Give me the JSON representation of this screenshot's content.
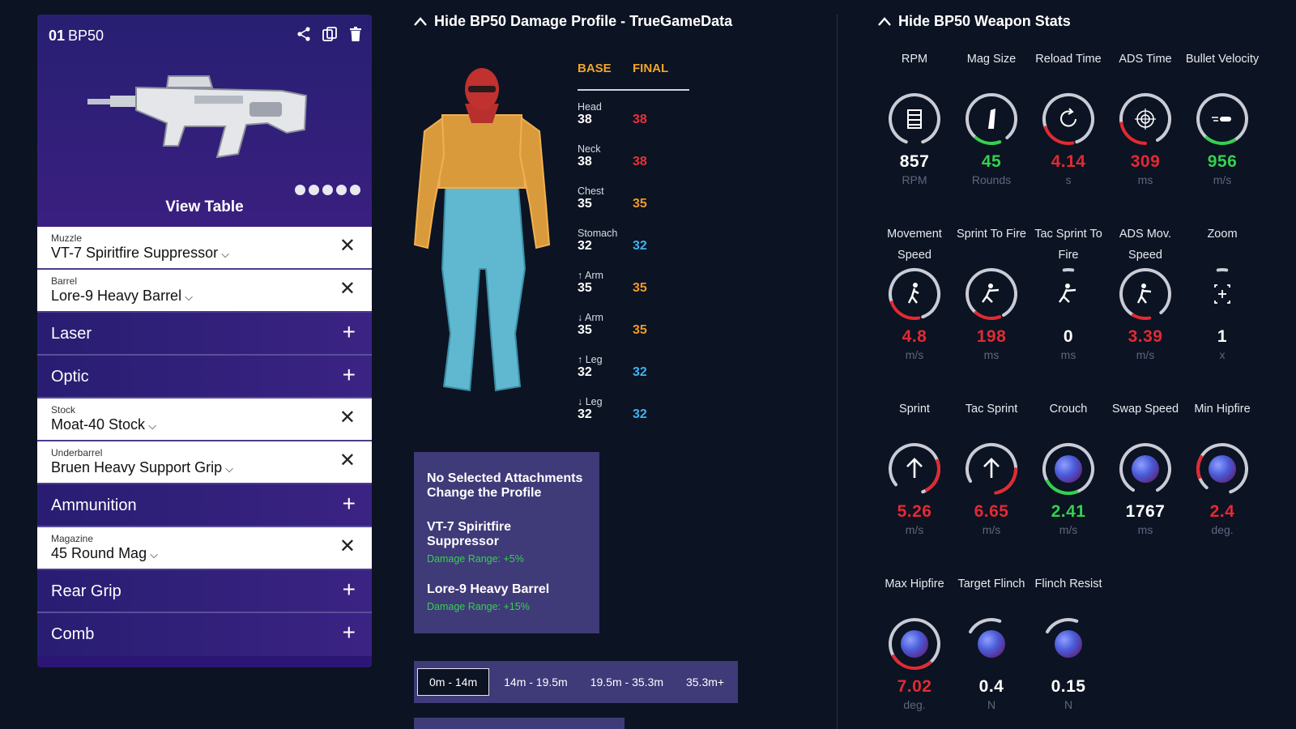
{
  "loadout": {
    "index": "01",
    "weapon": "BP50",
    "view_table": "View Table",
    "slots": [
      {
        "category": "Muzzle",
        "value": "VT-7 Spiritfire Suppressor",
        "filled": true
      },
      {
        "category": "Barrel",
        "value": "Lore-9 Heavy Barrel",
        "filled": true
      },
      {
        "category": "Laser",
        "filled": false
      },
      {
        "category": "Optic",
        "filled": false
      },
      {
        "category": "Stock",
        "value": "Moat-40 Stock",
        "filled": true
      },
      {
        "category": "Underbarrel",
        "value": "Bruen Heavy Support Grip",
        "filled": true
      },
      {
        "category": "Ammunition",
        "filled": false
      },
      {
        "category": "Magazine",
        "value": "45 Round Mag",
        "filled": true
      },
      {
        "category": "Rear Grip",
        "filled": false
      },
      {
        "category": "Comb",
        "filled": false
      }
    ]
  },
  "damage": {
    "title": "Hide BP50 Damage Profile - TrueGameData",
    "col_base": "BASE",
    "col_final": "FINAL",
    "rows": [
      {
        "part": "Head",
        "base": "38",
        "final": "38",
        "color": "#e8323a"
      },
      {
        "part": "Neck",
        "base": "38",
        "final": "38",
        "color": "#e8323a"
      },
      {
        "part": "Chest",
        "base": "35",
        "final": "35",
        "color": "#f09a2b"
      },
      {
        "part": "Stomach",
        "base": "32",
        "final": "32",
        "color": "#3fb2ee"
      },
      {
        "part": "↑ Arm",
        "base": "35",
        "final": "35",
        "color": "#f09a2b"
      },
      {
        "part": "↓ Arm",
        "base": "35",
        "final": "35",
        "color": "#f09a2b"
      },
      {
        "part": "↑ Leg",
        "base": "32",
        "final": "32",
        "color": "#3fb2ee"
      },
      {
        "part": "↓ Leg",
        "base": "32",
        "final": "32",
        "color": "#3fb2ee"
      }
    ],
    "notice_line1": "No Selected Attachments",
    "notice_line2": "Change the Profile",
    "attachments": [
      {
        "name": "VT-7 Spiritfire Suppressor",
        "effect": "Damage Range: +5%"
      },
      {
        "name": "Lore-9 Heavy Barrel",
        "effect": "Damage Range: +15%"
      }
    ],
    "ranges": [
      "0m - 14m",
      "14m - 19.5m",
      "19.5m - 35.3m",
      "35.3m+"
    ],
    "active_range": "0m - 14m"
  },
  "stats": {
    "title": "Hide BP50 Weapon Stats",
    "items": [
      {
        "label": "RPM",
        "value": "857",
        "unit": "RPM",
        "tone": "white",
        "icon": "magazine-icon"
      },
      {
        "label": "Mag Size",
        "value": "45",
        "unit": "Rounds",
        "tone": "green",
        "icon": "bullet-icon"
      },
      {
        "label": "Reload Time",
        "value": "4.14",
        "unit": "s",
        "tone": "red",
        "icon": "reload-icon"
      },
      {
        "label": "ADS Time",
        "value": "309",
        "unit": "ms",
        "tone": "red",
        "icon": "crosshair-icon"
      },
      {
        "label": "Bullet Velocity",
        "value": "956",
        "unit": "m/s",
        "tone": "green",
        "icon": "bullet-velocity-icon"
      },
      {
        "label": "Movement Speed",
        "value": "4.8",
        "unit": "m/s",
        "tone": "red",
        "icon": "walking-soldier-icon"
      },
      {
        "label": "Sprint To Fire",
        "value": "198",
        "unit": "ms",
        "tone": "red",
        "icon": "sprint-shoot-icon"
      },
      {
        "label": "Tac Sprint To Fire",
        "value": "0",
        "unit": "ms",
        "tone": "white",
        "icon": "tac-sprint-shoot-icon"
      },
      {
        "label": "ADS Mov. Speed",
        "value": "3.39",
        "unit": "m/s",
        "tone": "red",
        "icon": "ads-walk-icon"
      },
      {
        "label": "Zoom",
        "value": "1",
        "unit": "x",
        "tone": "white",
        "icon": "zoom-icon"
      },
      {
        "label": "Sprint",
        "value": "5.26",
        "unit": "m/s",
        "tone": "red",
        "icon": "arrow-up-icon"
      },
      {
        "label": "Tac Sprint",
        "value": "6.65",
        "unit": "m/s",
        "tone": "red",
        "icon": "arrow-up-icon"
      },
      {
        "label": "Crouch",
        "value": "2.41",
        "unit": "m/s",
        "tone": "green",
        "icon": "orb-icon"
      },
      {
        "label": "Swap Speed",
        "value": "1767",
        "unit": "ms",
        "tone": "white",
        "icon": "orb-icon"
      },
      {
        "label": "Min Hipfire",
        "value": "2.4",
        "unit": "deg.",
        "tone": "red",
        "icon": "orb-icon"
      },
      {
        "label": "Max Hipfire",
        "value": "7.02",
        "unit": "deg.",
        "tone": "red",
        "icon": "orb-icon"
      },
      {
        "label": "Target Flinch",
        "value": "0.4",
        "unit": "N",
        "tone": "white",
        "icon": "orb-icon"
      },
      {
        "label": "Flinch Resist",
        "value": "0.15",
        "unit": "N",
        "tone": "white",
        "icon": "orb-icon"
      }
    ]
  },
  "colors": {
    "panel": "#2b1675",
    "accent_red": "#e22a33",
    "accent_green": "#35d04f",
    "accent_orange": "#f0a52a",
    "accent_blue": "#3fb2ee",
    "ring_track": "#c9ccd6"
  }
}
